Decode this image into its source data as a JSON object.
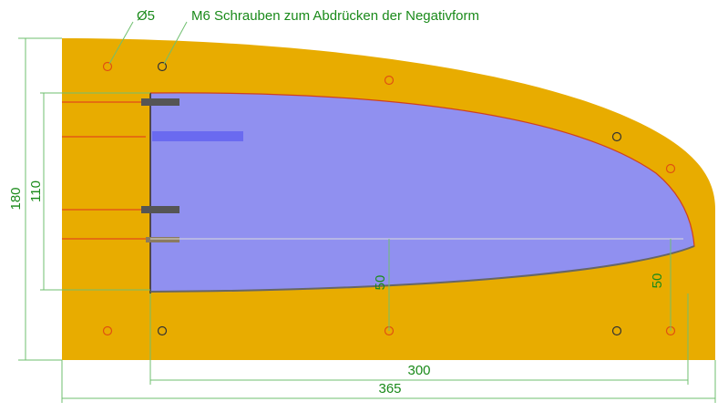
{
  "labels": {
    "hole_diameter": "Ø5",
    "screws_note": "M6 Schrauben zum Abdrücken der Negativform"
  },
  "dimensions": {
    "total_height": "180",
    "profile_height": "110",
    "offset_middle": "50",
    "offset_right": "50",
    "profile_length": "300",
    "total_length": "365"
  }
}
